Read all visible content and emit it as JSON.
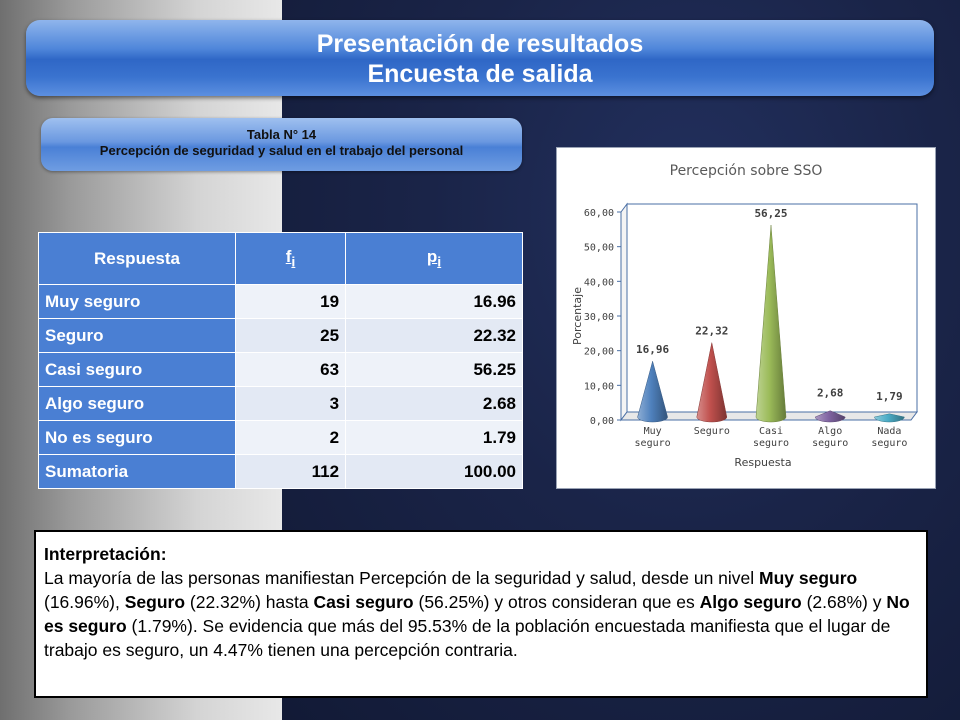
{
  "header": {
    "title_line1": "Presentación de resultados",
    "title_line2": "Encuesta de salida"
  },
  "table_title": {
    "line1": "Tabla N° 14",
    "line2": "Percepción de seguridad y salud en el trabajo del personal"
  },
  "table": {
    "col_respuesta": "Respuesta",
    "col_f": "f",
    "col_f_sub": "i",
    "col_p": "p",
    "col_p_sub": "i",
    "rows": [
      {
        "label": "Muy seguro",
        "f": "19",
        "p": "16.96"
      },
      {
        "label": "Seguro",
        "f": "25",
        "p": "22.32"
      },
      {
        "label": "Casi seguro",
        "f": "63",
        "p": "56.25"
      },
      {
        "label": "Algo seguro",
        "f": "3",
        "p": "2.68"
      },
      {
        "label": "No es seguro",
        "f": "2",
        "p": "1.79"
      },
      {
        "label": "Sumatoria",
        "f": "112",
        "p": "100.00"
      }
    ]
  },
  "chart_data": {
    "type": "bar",
    "title": "Percepción sobre SSO",
    "xlabel": "Respuesta",
    "ylabel": "Porcentaje",
    "categories": [
      [
        "Muy",
        "seguro"
      ],
      [
        "Seguro"
      ],
      [
        "Casi",
        "seguro"
      ],
      [
        "Algo",
        "seguro"
      ],
      [
        "Nada",
        "seguro"
      ]
    ],
    "values": [
      16.96,
      22.32,
      56.25,
      2.68,
      1.79
    ],
    "value_labels": [
      "16,96",
      "22,32",
      "56,25",
      "2,68",
      "1,79"
    ],
    "yticks": [
      "0,00",
      "10,00",
      "20,00",
      "30,00",
      "40,00",
      "50,00",
      "60,00"
    ],
    "ylim": [
      0,
      60
    ],
    "colors": [
      "#4f81bd",
      "#c0504d",
      "#9bbb59",
      "#8064a2",
      "#4bacc6"
    ],
    "shape": "cone-3d"
  },
  "interpretation": {
    "heading": "Interpretación:",
    "t1": "La mayoría de las personas manifiestan Percepción de la seguridad y salud, desde un nivel ",
    "b1": "Muy seguro",
    "t2": " (16.96%), ",
    "b2": "Seguro",
    "t3": " (22.32%) hasta ",
    "b3": "Casi seguro",
    "t4": " (56.25%) y otros consideran que es ",
    "b4": "Algo seguro",
    "t5": " (2.68%) y ",
    "b5": "No es seguro",
    "t6": " (1.79%). Se evidencia que más del 95.53% de la población encuestada manifiesta que el lugar de trabajo es seguro, un 4.47% tienen una percepción contraria."
  }
}
